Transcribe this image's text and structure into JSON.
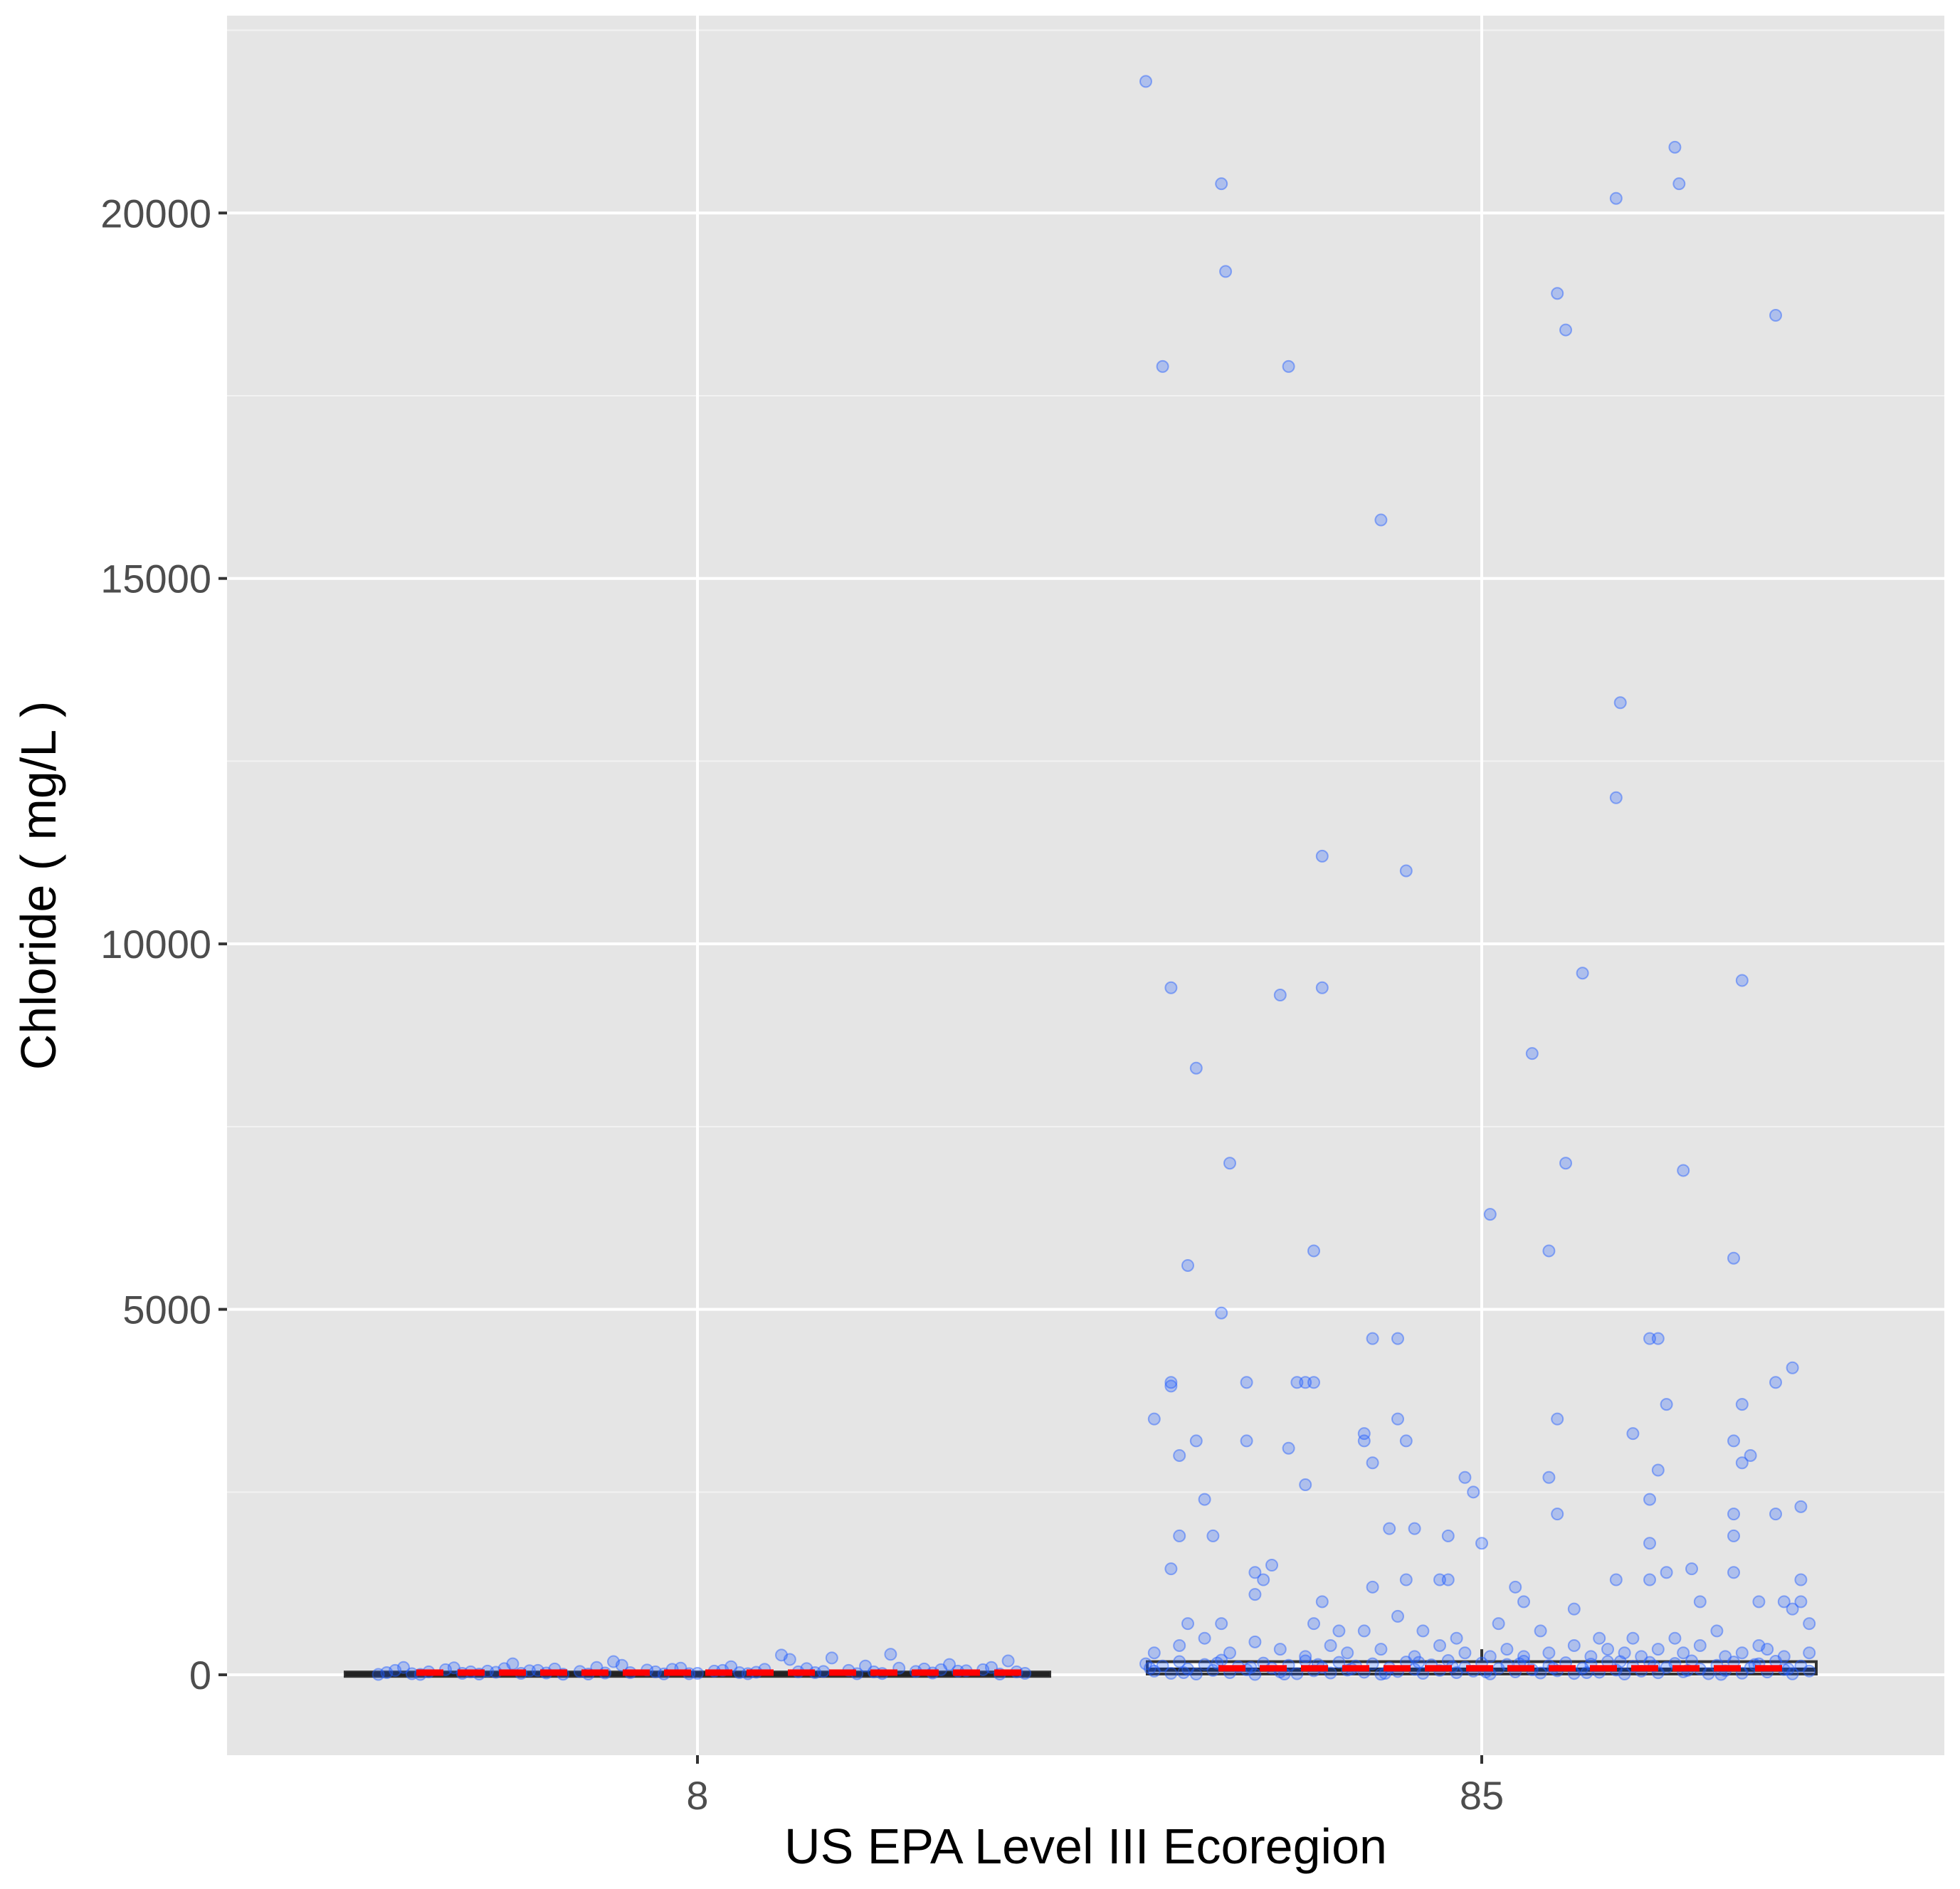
{
  "chart_data": {
    "type": "box-jitter",
    "xlabel": "US EPA Level III Ecoregion",
    "ylabel": "Chloride ( mg/L )",
    "categories": [
      "8",
      "85"
    ],
    "yticks": [
      0,
      5000,
      10000,
      15000,
      20000
    ],
    "ylim": [
      -1100,
      22700
    ],
    "grid": true,
    "boxes": [
      {
        "category": "8",
        "min": 0,
        "q1": 5,
        "median": 10,
        "q3": 18,
        "max": 40
      },
      {
        "category": "85",
        "min": 0,
        "q1": 30,
        "median": 70,
        "q3": 160,
        "max": 350
      }
    ],
    "mean_line": {
      "color": "#ff0000",
      "style": "dashed"
    },
    "point_color": "#1f5cff",
    "series": [
      {
        "category": "8",
        "points": [
          [
            -0.38,
            5
          ],
          [
            -0.36,
            60
          ],
          [
            -0.34,
            15
          ],
          [
            -0.32,
            40
          ],
          [
            -0.3,
            70
          ],
          [
            -0.28,
            20
          ],
          [
            -0.26,
            10
          ],
          [
            -0.24,
            35
          ],
          [
            -0.22,
            150
          ],
          [
            -0.2,
            55
          ],
          [
            -0.18,
            25
          ],
          [
            -0.16,
            8
          ],
          [
            -0.14,
            45
          ],
          [
            -0.12,
            100
          ],
          [
            -0.1,
            180
          ],
          [
            -0.08,
            30
          ],
          [
            -0.06,
            65
          ],
          [
            -0.04,
            12
          ],
          [
            -0.02,
            90
          ],
          [
            0.0,
            20
          ],
          [
            0.02,
            50
          ],
          [
            0.04,
            110
          ],
          [
            0.06,
            15
          ],
          [
            0.08,
            75
          ],
          [
            0.1,
            270
          ],
          [
            0.12,
            40
          ],
          [
            0.14,
            30
          ],
          [
            0.16,
            230
          ],
          [
            0.18,
            60
          ],
          [
            0.2,
            120
          ],
          [
            0.22,
            18
          ],
          [
            0.24,
            90
          ],
          [
            0.26,
            45
          ],
          [
            0.28,
            25
          ],
          [
            0.3,
            140
          ],
          [
            0.32,
            55
          ],
          [
            0.34,
            70
          ],
          [
            0.36,
            10
          ],
          [
            0.38,
            40
          ],
          [
            -0.37,
            30
          ],
          [
            -0.33,
            5
          ],
          [
            -0.29,
            95
          ],
          [
            -0.25,
            50
          ],
          [
            -0.21,
            20
          ],
          [
            -0.17,
            80
          ],
          [
            -0.13,
            10
          ],
          [
            -0.09,
            130
          ],
          [
            -0.05,
            40
          ],
          [
            -0.01,
            15
          ],
          [
            0.03,
            60
          ],
          [
            0.07,
            35
          ],
          [
            0.11,
            210
          ],
          [
            0.15,
            45
          ],
          [
            0.19,
            15
          ],
          [
            0.23,
            280
          ],
          [
            0.27,
            80
          ],
          [
            0.31,
            50
          ],
          [
            0.35,
            100
          ],
          [
            0.39,
            20
          ],
          [
            -0.35,
            100
          ],
          [
            -0.27,
            40
          ],
          [
            -0.19,
            60
          ],
          [
            -0.11,
            25
          ],
          [
            -0.03,
            75
          ],
          [
            0.05,
            30
          ],
          [
            0.13,
            85
          ],
          [
            0.21,
            40
          ],
          [
            0.29,
            70
          ],
          [
            0.37,
            190
          ],
          [
            -0.23,
            85
          ]
        ]
      },
      {
        "category": "85",
        "points": [
          [
            -0.4,
            21800
          ],
          [
            -0.38,
            17900
          ],
          [
            -0.31,
            20400
          ],
          [
            -0.305,
            19200
          ],
          [
            -0.23,
            17900
          ],
          [
            -0.12,
            15800
          ],
          [
            -0.09,
            11000
          ],
          [
            -0.19,
            11200
          ],
          [
            0.09,
            18900
          ],
          [
            0.1,
            18400
          ],
          [
            0.16,
            20200
          ],
          [
            0.23,
            20900
          ],
          [
            0.235,
            20400
          ],
          [
            0.35,
            18600
          ],
          [
            0.165,
            13300
          ],
          [
            0.16,
            12000
          ],
          [
            0.12,
            9600
          ],
          [
            0.31,
            9500
          ],
          [
            -0.37,
            9400
          ],
          [
            -0.24,
            9300
          ],
          [
            -0.19,
            9400
          ],
          [
            -0.34,
            8300
          ],
          [
            0.06,
            8500
          ],
          [
            -0.3,
            7000
          ],
          [
            0.1,
            7000
          ],
          [
            0.24,
            6900
          ],
          [
            0.01,
            6300
          ],
          [
            -0.2,
            5800
          ],
          [
            0.08,
            5800
          ],
          [
            0.3,
            5700
          ],
          [
            -0.35,
            5600
          ],
          [
            -0.31,
            4950
          ],
          [
            -0.13,
            4600
          ],
          [
            -0.1,
            4600
          ],
          [
            0.21,
            4600
          ],
          [
            0.2,
            4600
          ],
          [
            -0.37,
            4000
          ],
          [
            -0.37,
            3950
          ],
          [
            -0.28,
            4000
          ],
          [
            -0.22,
            4000
          ],
          [
            -0.2,
            4000
          ],
          [
            -0.21,
            4000
          ],
          [
            0.35,
            4000
          ],
          [
            0.37,
            4200
          ],
          [
            -0.39,
            3500
          ],
          [
            -0.14,
            3300
          ],
          [
            -0.36,
            3000
          ],
          [
            -0.34,
            3200
          ],
          [
            -0.28,
            3200
          ],
          [
            -0.23,
            3100
          ],
          [
            -0.14,
            3200
          ],
          [
            -0.1,
            3500
          ],
          [
            -0.09,
            3200
          ],
          [
            0.09,
            3500
          ],
          [
            0.18,
            3300
          ],
          [
            0.22,
            3700
          ],
          [
            0.31,
            3700
          ],
          [
            0.3,
            3200
          ],
          [
            0.31,
            2900
          ],
          [
            0.32,
            3000
          ],
          [
            0.21,
            2800
          ],
          [
            -0.13,
            2900
          ],
          [
            -0.21,
            2600
          ],
          [
            -0.02,
            2700
          ],
          [
            -0.01,
            2500
          ],
          [
            0.08,
            2700
          ],
          [
            0.2,
            2400
          ],
          [
            -0.33,
            2400
          ],
          [
            -0.11,
            2000
          ],
          [
            -0.08,
            2000
          ],
          [
            -0.36,
            1900
          ],
          [
            -0.32,
            1900
          ],
          [
            -0.04,
            1900
          ],
          [
            0.0,
            1800
          ],
          [
            0.09,
            2200
          ],
          [
            0.3,
            2200
          ],
          [
            0.35,
            2200
          ],
          [
            0.38,
            2300
          ],
          [
            0.3,
            1900
          ],
          [
            0.2,
            1800
          ],
          [
            -0.37,
            1450
          ],
          [
            -0.27,
            1400
          ],
          [
            -0.25,
            1500
          ],
          [
            -0.26,
            1300
          ],
          [
            -0.27,
            1100
          ],
          [
            -0.19,
            1000
          ],
          [
            -0.13,
            1200
          ],
          [
            -0.09,
            1300
          ],
          [
            -0.05,
            1300
          ],
          [
            -0.04,
            1300
          ],
          [
            -0.1,
            800
          ],
          [
            0.04,
            1200
          ],
          [
            0.05,
            1000
          ],
          [
            0.11,
            900
          ],
          [
            0.16,
            1300
          ],
          [
            0.2,
            1300
          ],
          [
            0.22,
            1400
          ],
          [
            0.25,
            1450
          ],
          [
            0.3,
            1400
          ],
          [
            0.33,
            1000
          ],
          [
            0.26,
            1000
          ],
          [
            0.36,
            1000
          ],
          [
            0.38,
            1000
          ],
          [
            0.37,
            900
          ],
          [
            0.38,
            1300
          ],
          [
            0.39,
            700
          ],
          [
            -0.35,
            700
          ],
          [
            -0.31,
            700
          ],
          [
            -0.2,
            700
          ],
          [
            -0.17,
            600
          ],
          [
            -0.14,
            600
          ],
          [
            -0.07,
            600
          ],
          [
            -0.03,
            500
          ],
          [
            0.02,
            700
          ],
          [
            0.07,
            600
          ],
          [
            0.14,
            500
          ],
          [
            0.18,
            500
          ],
          [
            0.23,
            500
          ],
          [
            0.28,
            600
          ],
          [
            0.33,
            400
          ],
          [
            -0.39,
            300
          ],
          [
            -0.36,
            400
          ],
          [
            -0.33,
            500
          ],
          [
            -0.3,
            300
          ],
          [
            -0.27,
            450
          ],
          [
            -0.24,
            350
          ],
          [
            -0.21,
            250
          ],
          [
            -0.18,
            400
          ],
          [
            -0.16,
            300
          ],
          [
            -0.12,
            350
          ],
          [
            -0.08,
            250
          ],
          [
            -0.05,
            400
          ],
          [
            -0.02,
            300
          ],
          [
            0.01,
            250
          ],
          [
            0.03,
            350
          ],
          [
            0.05,
            250
          ],
          [
            0.08,
            300
          ],
          [
            0.11,
            400
          ],
          [
            0.13,
            250
          ],
          [
            0.15,
            350
          ],
          [
            0.17,
            300
          ],
          [
            0.19,
            250
          ],
          [
            0.21,
            350
          ],
          [
            0.24,
            300
          ],
          [
            0.26,
            400
          ],
          [
            0.29,
            250
          ],
          [
            0.31,
            300
          ],
          [
            0.34,
            350
          ],
          [
            0.36,
            250
          ],
          [
            0.39,
            300
          ],
          [
            -0.4,
            150
          ],
          [
            -0.39,
            50
          ],
          [
            -0.38,
            120
          ],
          [
            -0.37,
            20
          ],
          [
            -0.36,
            180
          ],
          [
            -0.35,
            80
          ],
          [
            -0.34,
            10
          ],
          [
            -0.33,
            140
          ],
          [
            -0.32,
            60
          ],
          [
            -0.31,
            200
          ],
          [
            -0.3,
            30
          ],
          [
            -0.29,
            110
          ],
          [
            -0.28,
            70
          ],
          [
            -0.27,
            5
          ],
          [
            -0.26,
            160
          ],
          [
            -0.25,
            90
          ],
          [
            -0.24,
            40
          ],
          [
            -0.23,
            130
          ],
          [
            -0.22,
            15
          ],
          [
            -0.21,
            190
          ],
          [
            -0.2,
            55
          ],
          [
            -0.19,
            100
          ],
          [
            -0.18,
            25
          ],
          [
            -0.17,
            170
          ],
          [
            -0.16,
            65
          ],
          [
            -0.15,
            120
          ],
          [
            -0.14,
            35
          ],
          [
            -0.13,
            150
          ],
          [
            -0.12,
            8
          ],
          [
            -0.11,
            95
          ],
          [
            -0.1,
            45
          ],
          [
            -0.09,
            175
          ],
          [
            -0.08,
            75
          ],
          [
            -0.07,
            20
          ],
          [
            -0.06,
            135
          ],
          [
            -0.05,
            60
          ],
          [
            -0.04,
            195
          ],
          [
            -0.03,
            30
          ],
          [
            -0.02,
            105
          ],
          [
            -0.01,
            50
          ],
          [
            0.0,
            160
          ],
          [
            0.01,
            12
          ],
          [
            0.02,
            85
          ],
          [
            0.03,
            140
          ],
          [
            0.04,
            40
          ],
          [
            0.05,
            185
          ],
          [
            0.06,
            70
          ],
          [
            0.07,
            25
          ],
          [
            0.08,
            125
          ],
          [
            0.09,
            55
          ],
          [
            0.1,
            165
          ],
          [
            0.11,
            18
          ],
          [
            0.12,
            90
          ],
          [
            0.13,
            145
          ],
          [
            0.14,
            35
          ],
          [
            0.15,
            180
          ],
          [
            0.16,
            65
          ],
          [
            0.17,
            10
          ],
          [
            0.18,
            115
          ],
          [
            0.19,
            50
          ],
          [
            0.2,
            170
          ],
          [
            0.21,
            28
          ],
          [
            0.22,
            100
          ],
          [
            0.23,
            155
          ],
          [
            0.24,
            42
          ],
          [
            0.25,
            190
          ],
          [
            0.26,
            78
          ],
          [
            0.27,
            15
          ],
          [
            0.28,
            130
          ],
          [
            0.29,
            58
          ],
          [
            0.3,
            175
          ],
          [
            0.31,
            22
          ],
          [
            0.32,
            95
          ],
          [
            0.33,
            150
          ],
          [
            0.34,
            38
          ],
          [
            0.35,
            185
          ],
          [
            0.36,
            72
          ],
          [
            0.37,
            12
          ],
          [
            0.38,
            120
          ],
          [
            0.39,
            52
          ],
          [
            -0.395,
            90
          ],
          [
            -0.355,
            30
          ],
          [
            -0.315,
            160
          ],
          [
            -0.275,
            100
          ],
          [
            -0.235,
            10
          ],
          [
            -0.195,
            140
          ],
          [
            -0.155,
            80
          ],
          [
            -0.115,
            20
          ],
          [
            -0.075,
            170
          ],
          [
            -0.035,
            110
          ],
          [
            0.005,
            40
          ],
          [
            0.045,
            150
          ],
          [
            0.085,
            90
          ],
          [
            0.125,
            30
          ],
          [
            0.165,
            180
          ],
          [
            0.205,
            120
          ],
          [
            0.245,
            60
          ],
          [
            0.285,
            5
          ],
          [
            0.325,
            140
          ],
          [
            0.365,
            80
          ]
        ]
      }
    ]
  }
}
